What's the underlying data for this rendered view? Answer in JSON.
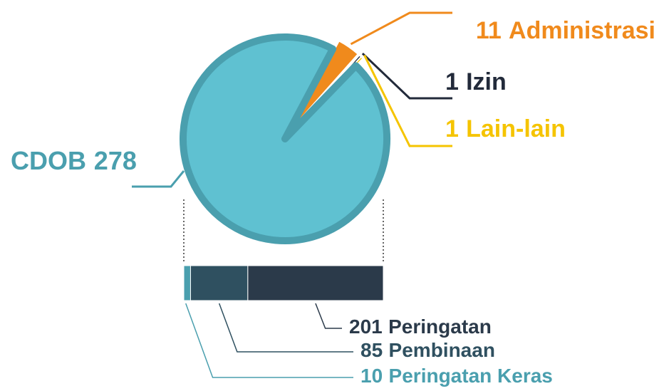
{
  "chart_data": [
    {
      "type": "pie",
      "categories": [
        "CDOB",
        "Administrasi",
        "Izin",
        "Lain-lain"
      ],
      "values": [
        278,
        11,
        1,
        1
      ],
      "colors": [
        "#5fc1d1",
        "#f08a1c",
        "#222a3a",
        "#f5c400"
      ]
    },
    {
      "type": "bar",
      "series": [
        {
          "name": "Peringatan Keras",
          "color": "#4a9fae",
          "values": [
            10
          ]
        },
        {
          "name": "Pembinaan",
          "color": "#2f5060",
          "values": [
            85
          ]
        },
        {
          "name": "Peringatan",
          "color": "#2b3a4a",
          "values": [
            201
          ]
        }
      ]
    }
  ]
}
